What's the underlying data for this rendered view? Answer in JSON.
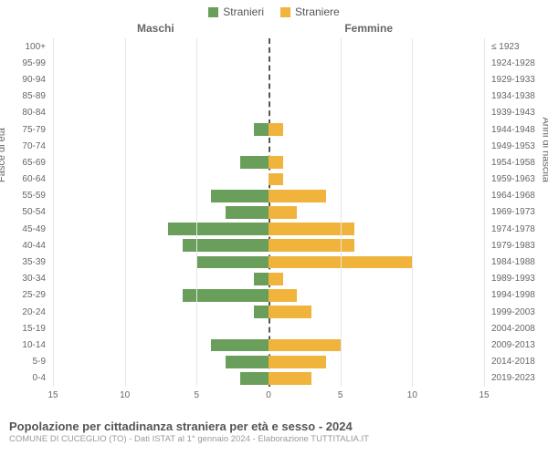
{
  "legend": {
    "male": {
      "label": "Stranieri",
      "color": "#6a9e5b"
    },
    "female": {
      "label": "Straniere",
      "color": "#f0b43c"
    }
  },
  "half_titles": {
    "left": "Maschi",
    "right": "Femmine"
  },
  "yaxis_left_label": "Fasce di età",
  "yaxis_right_label": "Anni di nascita",
  "xaxis_label": "",
  "xlim": 15,
  "xticks": [
    15,
    10,
    5,
    0,
    5,
    10,
    15
  ],
  "grid_color": "#e6e6e6",
  "center_color": "#555555",
  "background": "#ffffff",
  "bar_fill_opacity": 1,
  "age_groups": [
    {
      "age": "100+",
      "birth": "≤ 1923",
      "m": 0,
      "f": 0
    },
    {
      "age": "95-99",
      "birth": "1924-1928",
      "m": 0,
      "f": 0
    },
    {
      "age": "90-94",
      "birth": "1929-1933",
      "m": 0,
      "f": 0
    },
    {
      "age": "85-89",
      "birth": "1934-1938",
      "m": 0,
      "f": 0
    },
    {
      "age": "80-84",
      "birth": "1939-1943",
      "m": 0,
      "f": 0
    },
    {
      "age": "75-79",
      "birth": "1944-1948",
      "m": 1,
      "f": 1
    },
    {
      "age": "70-74",
      "birth": "1949-1953",
      "m": 0,
      "f": 0
    },
    {
      "age": "65-69",
      "birth": "1954-1958",
      "m": 2,
      "f": 1
    },
    {
      "age": "60-64",
      "birth": "1959-1963",
      "m": 0,
      "f": 1
    },
    {
      "age": "55-59",
      "birth": "1964-1968",
      "m": 4,
      "f": 4
    },
    {
      "age": "50-54",
      "birth": "1969-1973",
      "m": 3,
      "f": 2
    },
    {
      "age": "45-49",
      "birth": "1974-1978",
      "m": 7,
      "f": 6
    },
    {
      "age": "40-44",
      "birth": "1979-1983",
      "m": 6,
      "f": 6
    },
    {
      "age": "35-39",
      "birth": "1984-1988",
      "m": 5,
      "f": 10
    },
    {
      "age": "30-34",
      "birth": "1989-1993",
      "m": 1,
      "f": 1
    },
    {
      "age": "25-29",
      "birth": "1994-1998",
      "m": 6,
      "f": 2
    },
    {
      "age": "20-24",
      "birth": "1999-2003",
      "m": 1,
      "f": 3
    },
    {
      "age": "15-19",
      "birth": "2004-2008",
      "m": 0,
      "f": 0
    },
    {
      "age": "10-14",
      "birth": "2009-2013",
      "m": 4,
      "f": 5
    },
    {
      "age": "5-9",
      "birth": "2014-2018",
      "m": 3,
      "f": 4
    },
    {
      "age": "0-4",
      "birth": "2019-2023",
      "m": 2,
      "f": 3
    }
  ],
  "footer": {
    "title": "Popolazione per cittadinanza straniera per età e sesso - 2024",
    "subtitle": "COMUNE DI CUCEGLIO (TO) - Dati ISTAT al 1° gennaio 2024 - Elaborazione TUTTITALIA.IT"
  }
}
